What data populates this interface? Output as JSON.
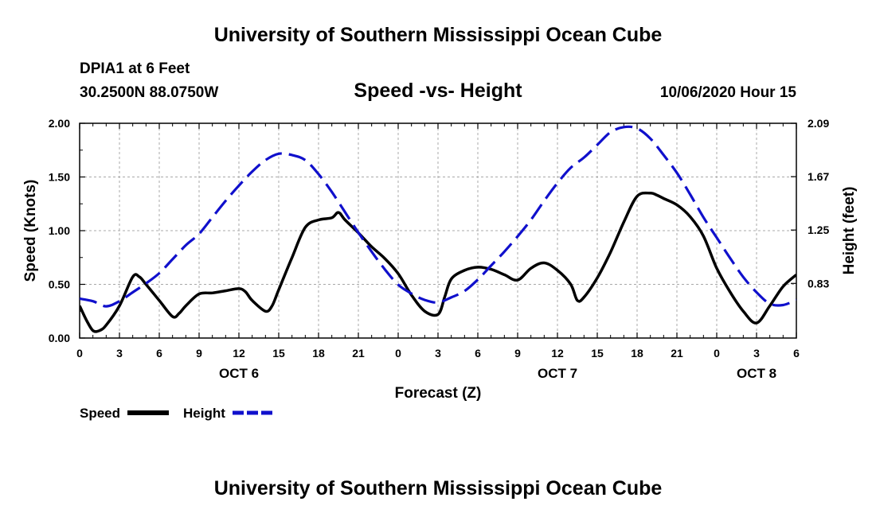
{
  "header": {
    "title": "University of Southern Mississippi Ocean Cube",
    "station": "DPIA1 at 6 Feet",
    "coordinates": "30.2500N 88.0750W",
    "subtitle": "Speed -vs- Height",
    "timestamp": "10/06/2020 Hour 15"
  },
  "footer": {
    "title": "University of Southern Mississippi Ocean Cube"
  },
  "chart_data": {
    "type": "line",
    "title": "Speed -vs- Height",
    "xlabel": "Forecast (Z)",
    "ylabel_left": "Speed (Knots)",
    "ylabel_right": "Height (feet)",
    "x_unit": "hours since 10/06/2020 00Z",
    "xlim": [
      0,
      54
    ],
    "x_ticks": [
      0,
      3,
      6,
      9,
      12,
      15,
      18,
      21,
      24,
      27,
      30,
      33,
      36,
      39,
      42,
      45,
      48,
      51,
      54
    ],
    "x_tick_labels": [
      "0",
      "3",
      "6",
      "9",
      "12",
      "15",
      "18",
      "21",
      "0",
      "3",
      "6",
      "9",
      "12",
      "15",
      "18",
      "21",
      "0",
      "3",
      "6"
    ],
    "date_labels": [
      {
        "x": 12,
        "label": "OCT 6"
      },
      {
        "x": 36,
        "label": "OCT 7"
      },
      {
        "x": 51,
        "label": "OCT 8"
      }
    ],
    "ylim_left": [
      0,
      2.0
    ],
    "y_ticks_left": [
      0,
      0.5,
      1.0,
      1.5,
      2.0
    ],
    "y_tick_labels_left": [
      "0.00",
      "0.50",
      "1.00",
      "1.50",
      "2.00"
    ],
    "ylim_right": [
      0.4,
      2.09
    ],
    "y_ticks_right": [
      0.83,
      1.25,
      1.67,
      2.09
    ],
    "y_tick_labels_right": [
      "0.83",
      "1.25",
      "1.67",
      "2.09"
    ],
    "grid": true,
    "series": [
      {
        "name": "Speed",
        "axis": "left",
        "color": "#000000",
        "style": "solid",
        "x": [
          0,
          0.5,
          1,
          1.5,
          2,
          3,
          4,
          4.5,
          5,
          6,
          7,
          7.5,
          8,
          9,
          10,
          11,
          12,
          12.5,
          13,
          14,
          14.5,
          15,
          16,
          17,
          18,
          19,
          19.5,
          20,
          21,
          22,
          23,
          24,
          25,
          26,
          27,
          27.5,
          28,
          29,
          30,
          31,
          32,
          33,
          34,
          35,
          36,
          37,
          37.5,
          38,
          39,
          40,
          41,
          42,
          43,
          43.5,
          44,
          45,
          46,
          47,
          48,
          49,
          50,
          51,
          52,
          53,
          54
        ],
        "values": [
          0.3,
          0.17,
          0.07,
          0.07,
          0.12,
          0.3,
          0.57,
          0.57,
          0.5,
          0.35,
          0.2,
          0.23,
          0.3,
          0.41,
          0.42,
          0.44,
          0.46,
          0.43,
          0.35,
          0.25,
          0.3,
          0.45,
          0.75,
          1.03,
          1.1,
          1.12,
          1.17,
          1.1,
          0.98,
          0.85,
          0.74,
          0.6,
          0.4,
          0.25,
          0.22,
          0.38,
          0.55,
          0.63,
          0.66,
          0.64,
          0.59,
          0.54,
          0.65,
          0.7,
          0.63,
          0.5,
          0.35,
          0.38,
          0.56,
          0.8,
          1.08,
          1.32,
          1.35,
          1.33,
          1.3,
          1.24,
          1.13,
          0.95,
          0.65,
          0.43,
          0.25,
          0.14,
          0.3,
          0.48,
          0.59
        ]
      },
      {
        "name": "Height",
        "axis": "right",
        "color": "#1010cc",
        "style": "dashed",
        "x": [
          0,
          1,
          2,
          3,
          4,
          5,
          6,
          7,
          8,
          9,
          10,
          11,
          12,
          13,
          14,
          15,
          16,
          17,
          18,
          19,
          20,
          21,
          22,
          23,
          24,
          25,
          26,
          27,
          28,
          29,
          30,
          31,
          32,
          33,
          34,
          35,
          36,
          37,
          38,
          39,
          40,
          41,
          42,
          43,
          44,
          45,
          46,
          47,
          48,
          49,
          50,
          51,
          52,
          53,
          54
        ],
        "values": [
          0.71,
          0.69,
          0.65,
          0.69,
          0.76,
          0.83,
          0.91,
          1.02,
          1.13,
          1.22,
          1.35,
          1.48,
          1.6,
          1.71,
          1.8,
          1.85,
          1.84,
          1.8,
          1.69,
          1.55,
          1.39,
          1.23,
          1.08,
          0.94,
          0.82,
          0.75,
          0.7,
          0.68,
          0.72,
          0.77,
          0.86,
          0.97,
          1.08,
          1.2,
          1.33,
          1.48,
          1.62,
          1.74,
          1.82,
          1.92,
          2.02,
          2.06,
          2.05,
          1.97,
          1.84,
          1.7,
          1.53,
          1.35,
          1.19,
          1.03,
          0.88,
          0.76,
          0.67,
          0.66,
          0.7
        ]
      }
    ],
    "legend": [
      {
        "name": "Speed",
        "color": "#000000",
        "style": "solid"
      },
      {
        "name": "Height",
        "color": "#1010cc",
        "style": "dashed"
      }
    ],
    "legend_placement": "bottom-left"
  }
}
